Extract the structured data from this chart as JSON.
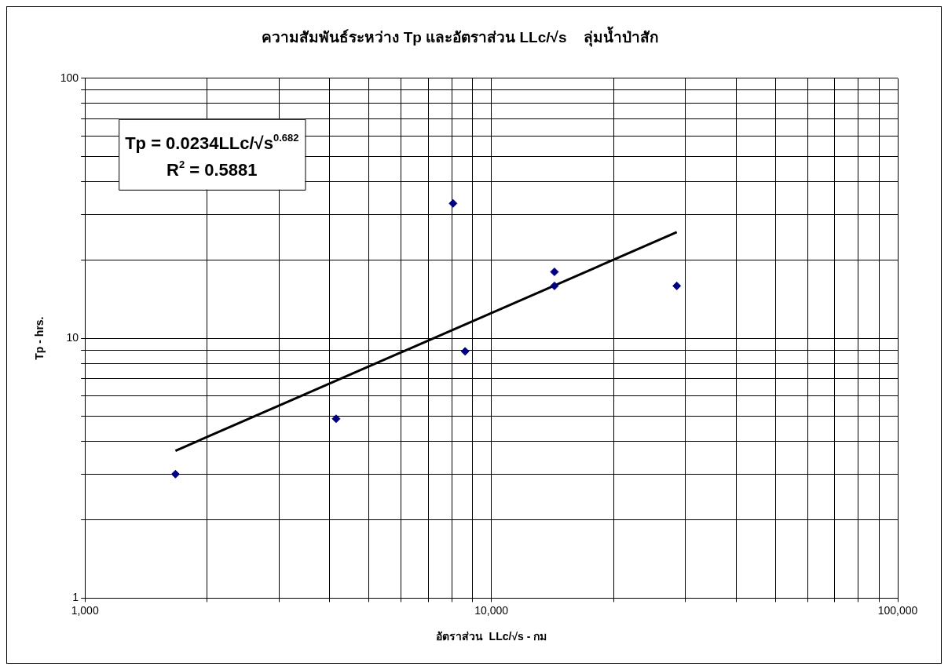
{
  "chart_data": {
    "type": "scatter",
    "title": "ความสัมพันธ์ระหว่าง Tp และอัตราส่วน LLc/√s    ลุ่มน้ำป่าสัก",
    "xlabel": "อัตราส่วน  LLc/√s - กม",
    "ylabel": "Tp - hrs.",
    "log": "xy",
    "grid": true,
    "legend": false,
    "xlim": [
      1000,
      100000
    ],
    "xticks": [
      {
        "value": 1000,
        "label": "1,000"
      },
      {
        "value": 2000,
        "label": null
      },
      {
        "value": 3000,
        "label": null
      },
      {
        "value": 4000,
        "label": null
      },
      {
        "value": 5000,
        "label": null
      },
      {
        "value": 6000,
        "label": null
      },
      {
        "value": 7000,
        "label": null
      },
      {
        "value": 8000,
        "label": null
      },
      {
        "value": 9000,
        "label": null
      },
      {
        "value": 10000,
        "label": "10,000"
      },
      {
        "value": 20000,
        "label": null
      },
      {
        "value": 30000,
        "label": null
      },
      {
        "value": 40000,
        "label": null
      },
      {
        "value": 50000,
        "label": null
      },
      {
        "value": 60000,
        "label": null
      },
      {
        "value": 70000,
        "label": null
      },
      {
        "value": 80000,
        "label": null
      },
      {
        "value": 90000,
        "label": null
      },
      {
        "value": 100000,
        "label": "100,000"
      }
    ],
    "ylim": [
      1,
      100
    ],
    "yticks": [
      1,
      {
        "value": 2,
        "label": null
      },
      {
        "value": 3,
        "label": null
      },
      {
        "value": 4,
        "label": null
      },
      {
        "value": 5,
        "label": null
      },
      {
        "value": 6,
        "label": null
      },
      {
        "value": 7,
        "label": null
      },
      {
        "value": 8,
        "label": null
      },
      {
        "value": 9,
        "label": null
      },
      10,
      {
        "value": 20,
        "label": null
      },
      {
        "value": 30,
        "label": null
      },
      {
        "value": 40,
        "label": null
      },
      {
        "value": 50,
        "label": null
      },
      {
        "value": 60,
        "label": null
      },
      {
        "value": 70,
        "label": null
      },
      {
        "value": 80,
        "label": null
      },
      {
        "value": 90,
        "label": null
      },
      100
    ],
    "series": [
      {
        "marker": "diamond",
        "color": "#000080",
        "x": [
          1670,
          4150,
          8050,
          8620,
          14300,
          14300,
          28600
        ],
        "values": [
          3,
          4.9,
          33,
          8.9,
          18,
          15.9,
          15.9
        ]
      },
      {
        "type": "line",
        "marker": "none",
        "color": "#000000",
        "x": [
          1670,
          28600
        ],
        "values": [
          3.69,
          25.6
        ]
      }
    ],
    "annotations": [
      "Tp = 0.0234LLc/√s$^{0.682}$",
      "R$^{2}$ = 0.5881"
    ]
  }
}
